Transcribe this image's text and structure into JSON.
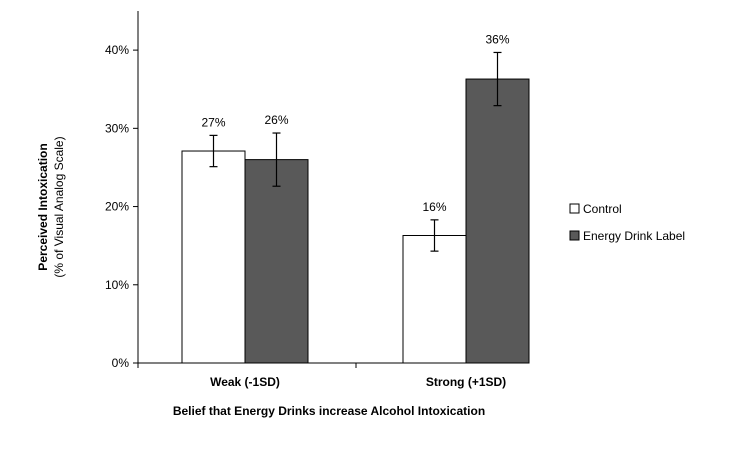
{
  "chart_data": {
    "type": "bar",
    "categories": [
      "Weak (-1SD)",
      "Strong (+1SD)"
    ],
    "series": [
      {
        "name": "Control",
        "values": [
          27.1,
          16.3
        ],
        "error": [
          2.0,
          2.0
        ],
        "labels": [
          "27%",
          "16%"
        ],
        "fill": "#ffffff"
      },
      {
        "name": "Energy Drink Label",
        "values": [
          26.0,
          36.3
        ],
        "error": [
          3.4,
          3.4
        ],
        "labels": [
          "26%",
          "36%"
        ],
        "fill": "#595959"
      }
    ],
    "xlabel": "Belief that Energy Drinks increase Alcohol Intoxication",
    "ylabel_line1": "Perceived Intoxication",
    "ylabel_line2": "(% of Visual Analog Scale)",
    "ylim": [
      0,
      45
    ],
    "yticks": [
      0,
      10,
      20,
      30,
      40
    ],
    "ytick_labels": [
      "0%",
      "10%",
      "20%",
      "30%",
      "40%"
    ],
    "grid": false,
    "legend_position": "right"
  }
}
